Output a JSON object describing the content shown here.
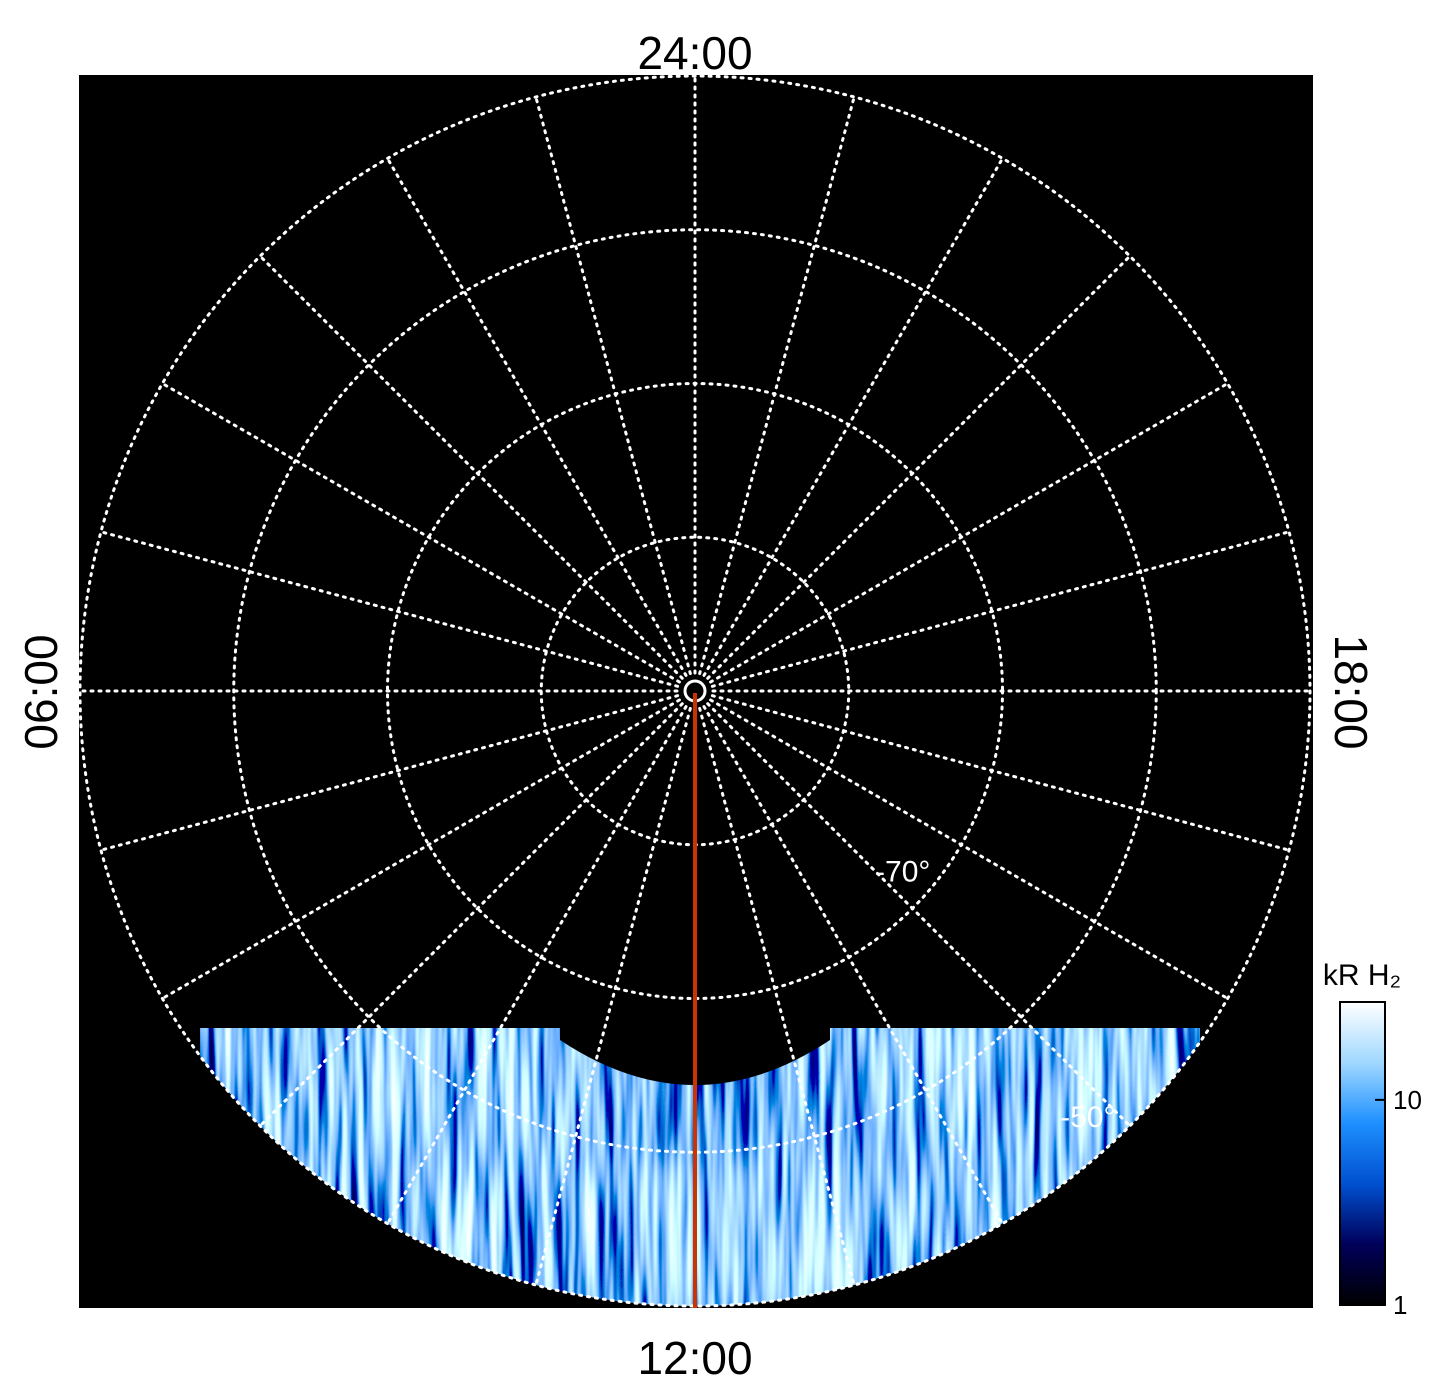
{
  "chart_data": {
    "type": "polar-map",
    "hour_labels": [
      "24:00",
      "06:00",
      "12:00",
      "18:00"
    ],
    "rlim": [
      -90,
      -50
    ],
    "rgrid": [
      -80,
      -70,
      -60,
      -50
    ],
    "rticks": [
      {
        "value": -70,
        "label": "-70°"
      },
      {
        "value": -50,
        "label": "-50°"
      }
    ],
    "meridians": 24,
    "colorbar": {
      "label": "kR H₂",
      "scale": "log",
      "lim": [
        1,
        30
      ],
      "ticks": [
        1,
        10
      ],
      "colors": [
        "#000000",
        "#00005a",
        "#0050d0",
        "#1e90ff",
        "#a0d8ff",
        "#ffffff"
      ]
    }
  }
}
